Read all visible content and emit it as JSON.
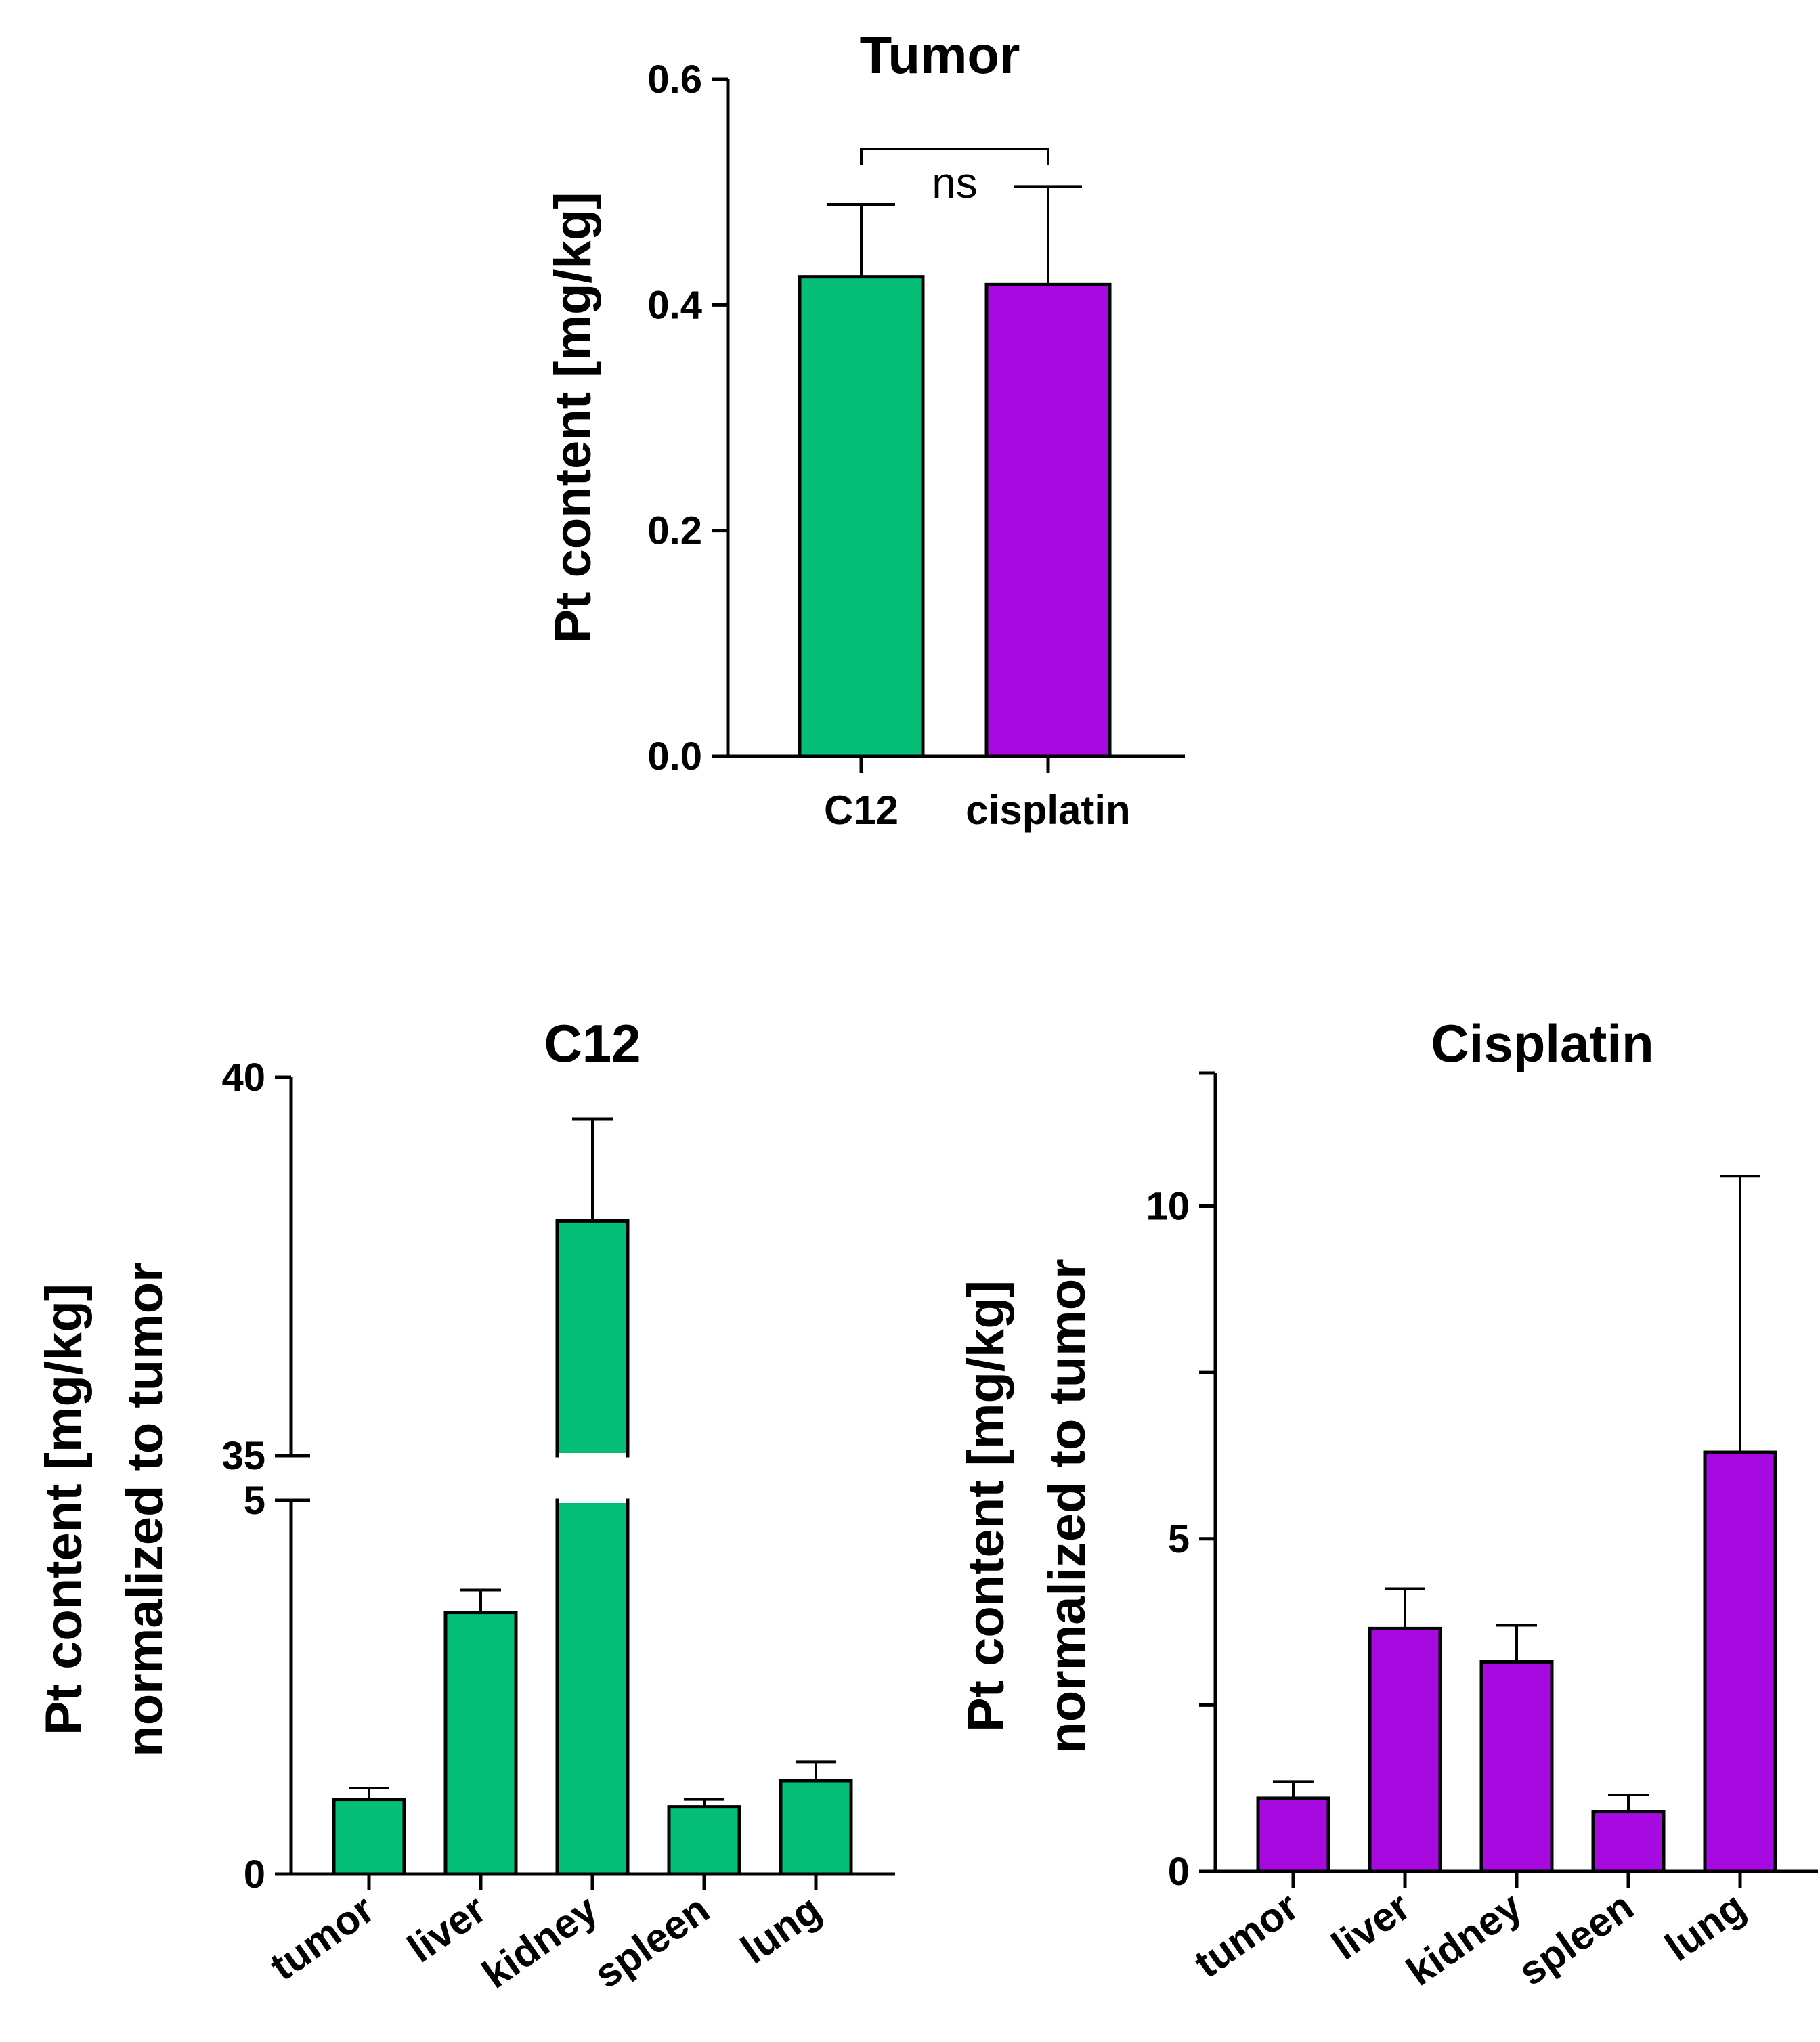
{
  "chart_data": [
    {
      "type": "bar",
      "title": "Tumor",
      "ylabel": [
        "Pt content [mg/kg]"
      ],
      "categories": [
        "C12",
        "cisplatin"
      ],
      "values": [
        0.425,
        0.418
      ],
      "errors": [
        0.064,
        0.087
      ],
      "colors": [
        "#05bf78",
        "#a60ae0"
      ],
      "ylim": [
        0,
        0.6
      ],
      "yticks": [
        0.0,
        0.2,
        0.4,
        0.6
      ],
      "ytick_labels": [
        "0.0",
        "0.2",
        "0.4",
        "0.6"
      ],
      "annotation": "ns"
    },
    {
      "type": "bar",
      "title": "C12",
      "ylabel": [
        "Pt content [mg/kg]",
        "normalized to tumor"
      ],
      "categories": [
        "tumor",
        "liver",
        "kidney",
        "spleen",
        "lung"
      ],
      "values": [
        1.0,
        3.5,
        38.1,
        0.9,
        1.25
      ],
      "errors": [
        0.15,
        0.3,
        1.35,
        0.1,
        0.25
      ],
      "color": "#05bf78",
      "y_axis_break": {
        "lower": [
          0,
          5
        ],
        "upper": [
          35,
          40
        ]
      },
      "yticks": [
        0,
        5,
        35,
        40
      ],
      "ytick_labels": [
        "0",
        "5",
        "35",
        "40"
      ]
    },
    {
      "type": "bar",
      "title": "Cisplatin",
      "ylabel": [
        "Pt content [mg/kg]",
        "normalized to tumor"
      ],
      "categories": [
        "tumor",
        "liver",
        "kidney",
        "spleen",
        "lung"
      ],
      "values": [
        1.1,
        3.65,
        3.15,
        0.9,
        6.3
      ],
      "errors": [
        0.25,
        0.6,
        0.55,
        0.25,
        4.15
      ],
      "color": "#a60ae0",
      "ylim": [
        0,
        12
      ],
      "yticks": [
        0,
        5,
        10
      ],
      "ytick_labels": [
        "0",
        "5",
        "10"
      ]
    }
  ]
}
